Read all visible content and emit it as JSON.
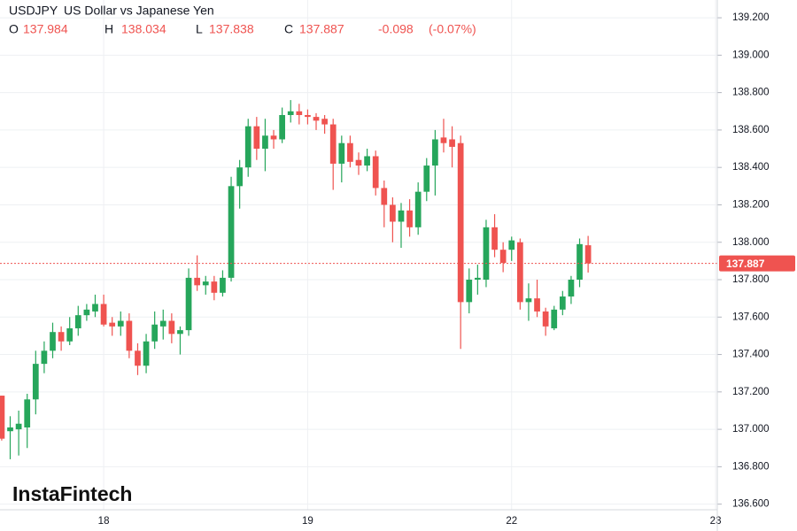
{
  "chart_data": {
    "type": "candlestick",
    "symbol": "USDJPY",
    "name": "US Dollar vs Japanese Yen",
    "ohlc": [
      {
        "label": "O",
        "value": 137.984
      },
      {
        "label": "H",
        "value": 138.034
      },
      {
        "label": "L",
        "value": 137.838
      },
      {
        "label": "C",
        "value": 137.887
      }
    ],
    "change": -0.098,
    "change_pct": "(-0.07%)",
    "watermark": "InstaFintech",
    "current_price": {
      "value": 137.887,
      "label": "137.887"
    },
    "up_color": "#26a65b",
    "down_color": "#ef5350",
    "grid": true,
    "xlim": [
      -0.2,
      84.2
    ],
    "xticks": [
      {
        "value": 12,
        "label": "18"
      },
      {
        "value": 36,
        "label": "19"
      },
      {
        "value": 60,
        "label": "22"
      },
      {
        "value": 84,
        "label": "23"
      }
    ],
    "ylim": [
      136.57,
      139.295
    ],
    "yticks": [
      {
        "value": 136.6,
        "label": "136.600"
      },
      {
        "value": 136.8,
        "label": "136.800"
      },
      {
        "value": 137.0,
        "label": "137.000"
      },
      {
        "value": 137.2,
        "label": "137.200"
      },
      {
        "value": 137.4,
        "label": "137.400"
      },
      {
        "value": 137.6,
        "label": "137.600"
      },
      {
        "value": 137.8,
        "label": "137.800"
      },
      {
        "value": 138.0,
        "label": "138.000"
      },
      {
        "value": 138.2,
        "label": "138.200"
      },
      {
        "value": 138.4,
        "label": "138.400"
      },
      {
        "value": 138.6,
        "label": "138.600"
      },
      {
        "value": 138.8,
        "label": "138.800"
      },
      {
        "value": 139.0,
        "label": "139.000"
      },
      {
        "value": 139.2,
        "label": "139.200"
      }
    ],
    "open": [
      137.18,
      136.99,
      137.0,
      137.01,
      137.16,
      137.35,
      137.42,
      137.52,
      137.47,
      137.54,
      137.61,
      137.63,
      137.67,
      137.57,
      137.55,
      137.58,
      137.42,
      137.34,
      137.47,
      137.55,
      137.58,
      137.51,
      137.53,
      137.81,
      137.77,
      137.79,
      137.73,
      137.81,
      138.3,
      138.4,
      138.62,
      138.5,
      138.57,
      138.55,
      138.68,
      138.7,
      138.68,
      138.67,
      138.66,
      138.63,
      138.42,
      138.53,
      138.44,
      138.41,
      138.46,
      138.29,
      138.2,
      138.11,
      138.17,
      138.08,
      138.27,
      138.41,
      138.56,
      138.55,
      138.53,
      137.68,
      137.8,
      137.8,
      138.08,
      137.96,
      137.96,
      138.0,
      137.68,
      137.7,
      137.63,
      137.54,
      137.64,
      137.71,
      137.8,
      137.984
    ],
    "high": [
      137.18,
      137.07,
      137.1,
      137.19,
      137.42,
      137.47,
      137.57,
      137.55,
      137.6,
      137.66,
      137.67,
      137.72,
      137.72,
      137.6,
      137.63,
      137.62,
      137.46,
      137.51,
      137.63,
      137.64,
      137.62,
      137.55,
      137.86,
      137.93,
      137.82,
      137.82,
      137.85,
      138.35,
      138.44,
      138.66,
      138.67,
      138.66,
      138.6,
      138.72,
      138.76,
      138.74,
      138.71,
      138.69,
      138.68,
      138.66,
      138.57,
      138.57,
      138.48,
      138.5,
      138.49,
      138.33,
      138.24,
      138.21,
      138.23,
      138.32,
      138.45,
      138.6,
      138.66,
      138.62,
      138.57,
      137.86,
      137.88,
      138.12,
      138.15,
      138.0,
      138.03,
      138.02,
      137.78,
      137.8,
      137.65,
      137.66,
      137.74,
      137.82,
      138.02,
      138.034
    ],
    "low": [
      136.94,
      136.84,
      136.86,
      136.9,
      137.08,
      137.3,
      137.38,
      137.42,
      137.45,
      137.5,
      137.58,
      137.6,
      137.55,
      137.5,
      137.5,
      137.38,
      137.29,
      137.3,
      137.43,
      137.48,
      137.46,
      137.4,
      137.5,
      137.74,
      137.72,
      137.69,
      137.71,
      137.79,
      138.18,
      138.35,
      138.44,
      138.38,
      138.5,
      138.53,
      138.64,
      138.63,
      138.63,
      138.6,
      138.58,
      138.28,
      138.32,
      138.4,
      138.36,
      138.38,
      138.25,
      138.08,
      138.0,
      137.97,
      138.03,
      138.04,
      138.22,
      138.25,
      138.48,
      138.4,
      137.43,
      137.62,
      137.72,
      137.76,
      137.92,
      137.84,
      137.9,
      137.64,
      137.58,
      137.6,
      137.5,
      137.53,
      137.61,
      137.67,
      137.76,
      137.838
    ],
    "close": [
      136.95,
      137.01,
      137.03,
      137.16,
      137.35,
      137.42,
      137.52,
      137.47,
      137.54,
      137.61,
      137.64,
      137.67,
      137.56,
      137.55,
      137.58,
      137.42,
      137.34,
      137.47,
      137.56,
      137.58,
      137.51,
      137.53,
      137.81,
      137.77,
      137.79,
      137.73,
      137.81,
      138.3,
      138.4,
      138.62,
      138.5,
      138.57,
      138.55,
      138.68,
      138.7,
      138.68,
      138.67,
      138.65,
      138.63,
      138.42,
      138.53,
      138.43,
      138.41,
      138.46,
      138.29,
      138.2,
      138.11,
      138.17,
      138.08,
      138.27,
      138.41,
      138.55,
      138.53,
      138.51,
      137.68,
      137.8,
      137.81,
      138.08,
      137.96,
      137.89,
      138.01,
      137.68,
      137.7,
      137.63,
      137.55,
      137.64,
      137.71,
      137.8,
      137.99,
      137.887
    ]
  }
}
